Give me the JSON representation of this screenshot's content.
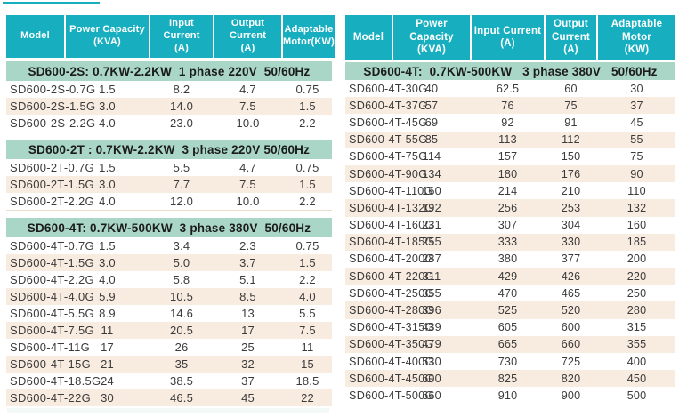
{
  "colors": {
    "header_teal": "#17afc0",
    "section_green": "#aad6c8",
    "stripe_pink": "#f8ebe0",
    "body_text": "#3b3b3b",
    "header_text": "#ffffff"
  },
  "tables": [
    {
      "id": "left",
      "columns": [
        [
          "Model"
        ],
        [
          "Power Capacity",
          "(KVA)"
        ],
        [
          "Input Current",
          "(A)"
        ],
        [
          "Output Current",
          "(A)"
        ],
        [
          "Adaptable",
          "Motor(KW)"
        ]
      ],
      "sections": [
        {
          "title": "SD600-2S: 0.7KW-2.2KW  1 phase 220V  50/60Hz",
          "rows": [
            [
              "SD600-2S-0.7G",
              "1.5",
              "8.2",
              "4.7",
              "0.75"
            ],
            [
              "SD600-2S-1.5G",
              "3.0",
              "14.0",
              "7.5",
              "1.5"
            ],
            [
              "SD600-2S-2.2G",
              "4.0",
              "23.0",
              "10.0",
              "2.2"
            ]
          ]
        },
        {
          "title": "SD600-2T : 0.7KW-2.2KW  3 phase 220V 50/60Hz",
          "rows": [
            [
              "SD600-2T-0.7G",
              "1.5",
              "5.5",
              "4.7",
              "0.75"
            ],
            [
              "SD600-2T-1.5G",
              "3.0",
              "7.7",
              "7.5",
              "1.5"
            ],
            [
              "SD600-2T-2.2G",
              "4.0",
              "12.0",
              "10.0",
              "2.2"
            ]
          ]
        },
        {
          "title": "SD600-4T: 0.7KW-500KW  3 phase 380V  50/60Hz",
          "rows": [
            [
              "SD600-4T-0.7G",
              "1.5",
              "3.4",
              "2.3",
              "0.75"
            ],
            [
              "SD600-4T-1.5G",
              "3.0",
              "5.0",
              "3.7",
              "1.5"
            ],
            [
              "SD600-4T-2.2G",
              "4.0",
              "5.8",
              "5.1",
              "2.2"
            ],
            [
              "SD600-4T-4.0G",
              "5.9",
              "10.5",
              "8.5",
              "4.0"
            ],
            [
              "SD600-4T-5.5G",
              "8.9",
              "14.6",
              "13",
              "5.5"
            ],
            [
              "SD600-4T-7.5G",
              "11",
              "20.5",
              "17",
              "7.5"
            ],
            [
              "SD600-4T-11G",
              "17",
              "26",
              "25",
              "11"
            ],
            [
              "SD600-4T-15G",
              "21",
              "35",
              "32",
              "15"
            ],
            [
              "SD600-4T-18.5G",
              "24",
              "38.5",
              "37",
              "18.5"
            ],
            [
              "SD600-4T-22G",
              "30",
              "46.5",
              "45",
              "22"
            ]
          ]
        }
      ]
    },
    {
      "id": "right",
      "columns": [
        [
          "Model"
        ],
        [
          "Power Capacity",
          "(KVA)"
        ],
        [
          "Input Current",
          "(A)"
        ],
        [
          "Output",
          "Current",
          "(A)"
        ],
        [
          "Adaptable Motor",
          "(KW)"
        ]
      ],
      "sections": [
        {
          "title": "SD600-4T:  0.7KW-500KW   3 phase 380V   50/60Hz",
          "rows": [
            [
              "SD600-4T-30G",
              "40",
              "62.5",
              "60",
              "30"
            ],
            [
              "SD600-4T-37G",
              "57",
              "76",
              "75",
              "37"
            ],
            [
              "SD600-4T-45G",
              "69",
              "92",
              "91",
              "45"
            ],
            [
              "SD600-4T-55G",
              "85",
              "113",
              "112",
              "55"
            ],
            [
              "SD600-4T-75G",
              "114",
              "157",
              "150",
              "75"
            ],
            [
              "SD600-4T-90G",
              "134",
              "180",
              "176",
              "90"
            ],
            [
              "SD600-4T-110G",
              "160",
              "214",
              "210",
              "110"
            ],
            [
              "SD600-4T-132G",
              "192",
              "256",
              "253",
              "132"
            ],
            [
              "SD600-4T-160G",
              "231",
              "307",
              "304",
              "160"
            ],
            [
              "SD600-4T-185G",
              "255",
              "333",
              "330",
              "185"
            ],
            [
              "SD600-4T-200G",
              "287",
              "380",
              "377",
              "200"
            ],
            [
              "SD600-4T-220G",
              "311",
              "429",
              "426",
              "220"
            ],
            [
              "SD600-4T-250G",
              "355",
              "470",
              "465",
              "250"
            ],
            [
              "SD600-4T-280G",
              "396",
              "525",
              "520",
              "280"
            ],
            [
              "SD600-4T-315G",
              "439",
              "605",
              "600",
              "315"
            ],
            [
              "SD600-4T-350G",
              "479",
              "665",
              "660",
              "355"
            ],
            [
              "SD600-4T-400G",
              "530",
              "730",
              "725",
              "400"
            ],
            [
              "SD600-4T-450G",
              "600",
              "825",
              "820",
              "450"
            ],
            [
              "SD600-4T-500G",
              "660",
              "910",
              "900",
              "500"
            ]
          ]
        }
      ]
    }
  ]
}
